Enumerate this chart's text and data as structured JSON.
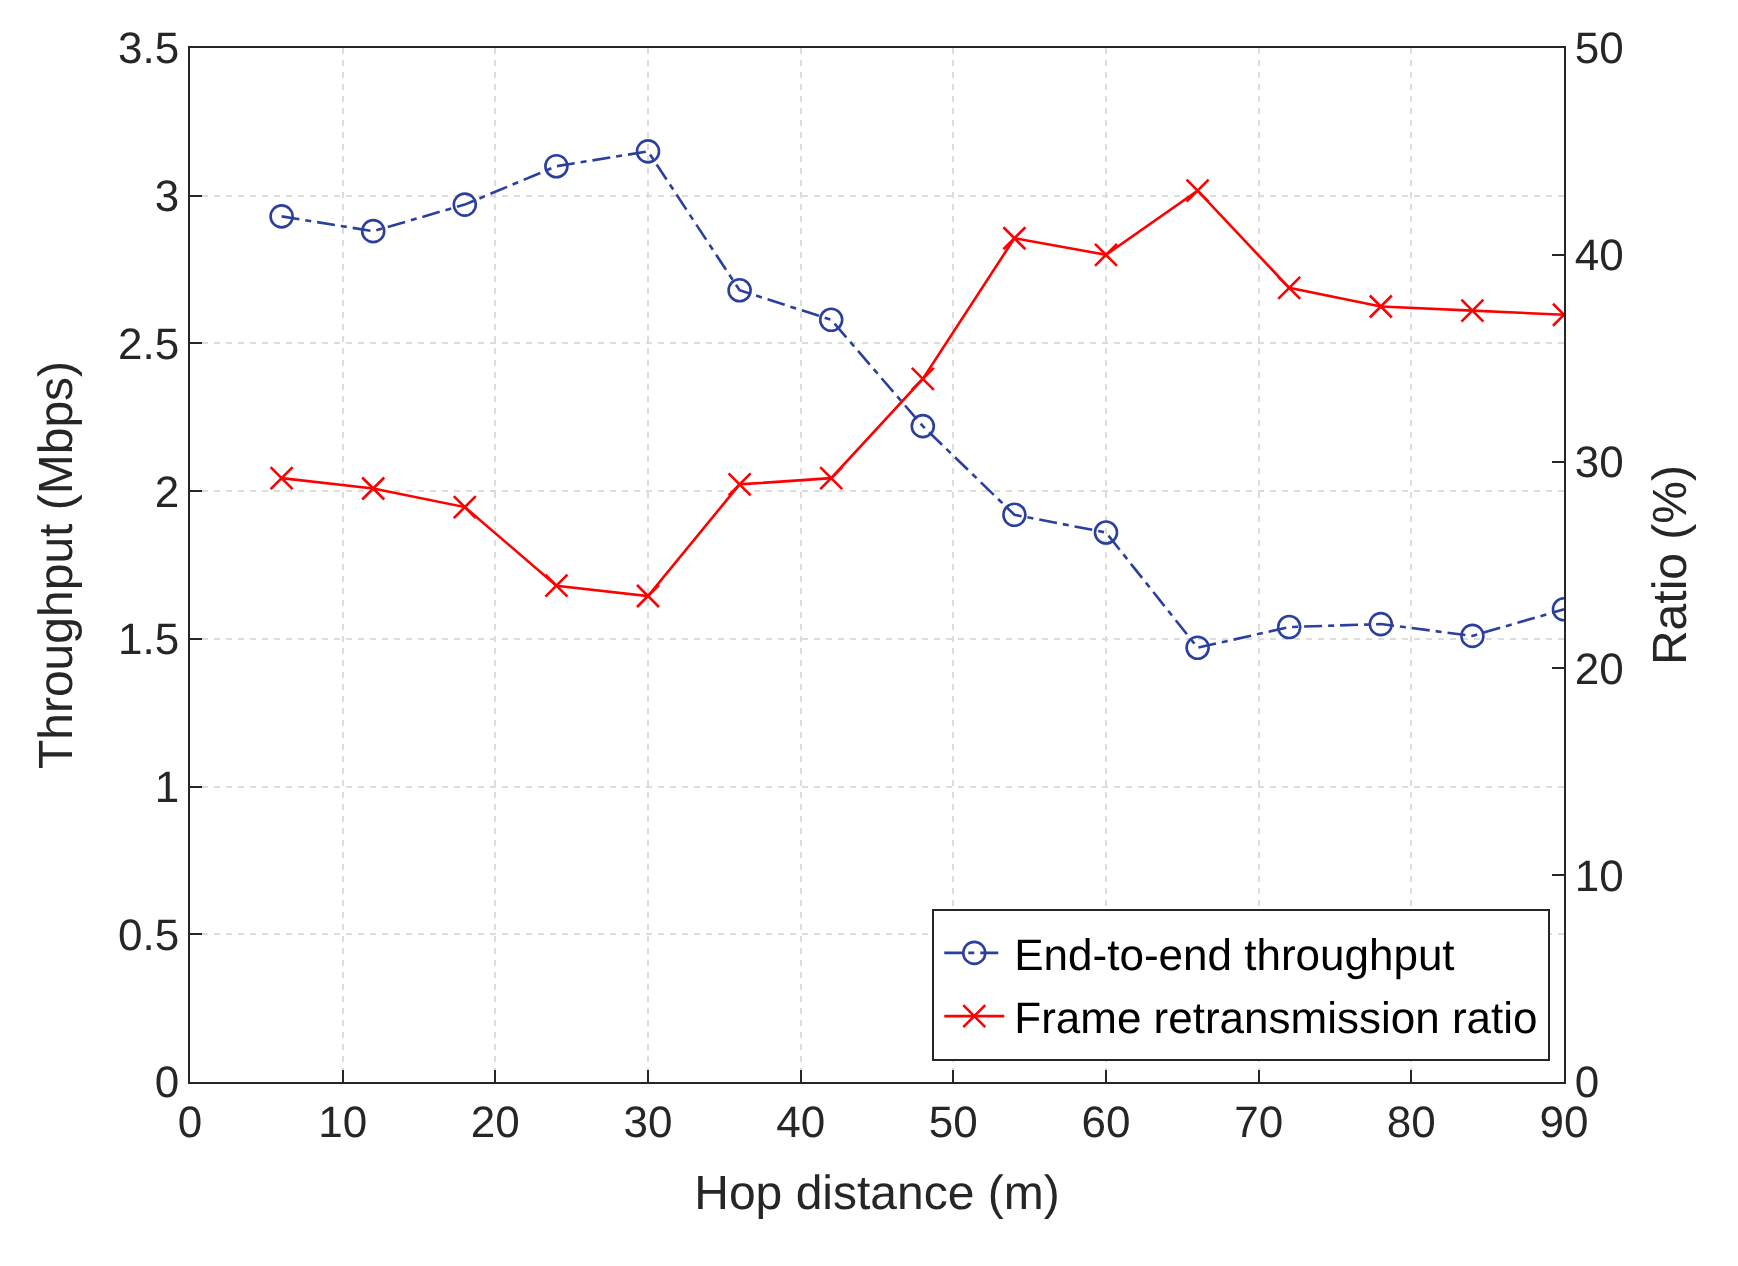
{
  "chart_data": {
    "type": "line",
    "xlabel": "Hop distance (m)",
    "ylabel": "Throughput (Mbps)",
    "y2label": "Ratio (%)",
    "x": [
      6,
      12,
      18,
      24,
      30,
      36,
      42,
      48,
      54,
      60,
      66,
      72,
      78,
      84,
      90
    ],
    "series": [
      {
        "name": "End-to-end throughput",
        "color": "#2b3f9e",
        "marker": "circle",
        "line_style": "dashdot",
        "values": [
          2.93,
          2.88,
          2.97,
          3.1,
          3.15,
          2.68,
          2.58,
          2.22,
          1.92,
          1.86,
          1.47,
          1.54,
          1.55,
          1.51,
          1.6
        ]
      },
      {
        "name": "Frame retransmission ratio",
        "color": "#ff0000",
        "marker": "cross",
        "line_style": "solid",
        "axis": "y2",
        "values": [
          29.2,
          28.7,
          27.8,
          24.0,
          23.5,
          28.9,
          29.2,
          34.0,
          40.8,
          40.0,
          43.1,
          38.4,
          37.5,
          37.3,
          37.1
        ]
      }
    ],
    "xlim": [
      0,
      90
    ],
    "xticks": [
      0,
      10,
      20,
      30,
      40,
      50,
      60,
      70,
      80,
      90
    ],
    "ylim": [
      0,
      3.5
    ],
    "yticks": [
      0,
      0.5,
      1,
      1.5,
      2,
      2.5,
      3,
      3.5
    ],
    "y2lim": [
      0,
      50
    ],
    "y2ticks": [
      0,
      10,
      20,
      30,
      40,
      50
    ],
    "grid": true,
    "legend": "bottom right"
  }
}
